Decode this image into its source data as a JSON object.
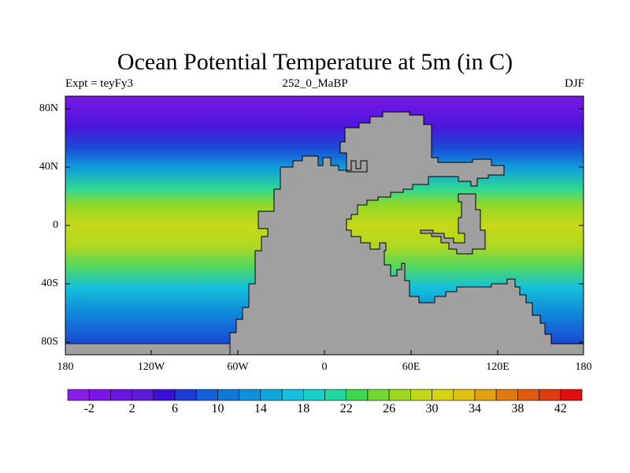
{
  "title": "Ocean Potential Temperature at 5m (in C)",
  "subtitle_left": "Expt = teyFy3",
  "subtitle_center": "252_0_MaBP",
  "subtitle_right": "DJF",
  "y_ticks": [
    "80N",
    "40N",
    "0",
    "40S",
    "80S"
  ],
  "x_ticks": [
    "180",
    "120W",
    "60W",
    "0",
    "60E",
    "120E",
    "180"
  ],
  "colorbar": {
    "colors": [
      "#8a1ee6",
      "#7b16e6",
      "#6a16e0",
      "#5c1ad9",
      "#3a10d8",
      "#1e3ad6",
      "#1460d6",
      "#1078d8",
      "#0e90da",
      "#10a8dc",
      "#14c0dc",
      "#18d0c8",
      "#20d8a0",
      "#40d850",
      "#70d830",
      "#a0d820",
      "#c0d818",
      "#d4d410",
      "#e0c010",
      "#e0a010",
      "#e07a10",
      "#e05a10",
      "#e03a10",
      "#e01010"
    ],
    "labels": [
      "-2",
      "2",
      "6",
      "10",
      "14",
      "18",
      "22",
      "26",
      "30",
      "34",
      "38",
      "42"
    ]
  },
  "colors": {
    "land": "#a0a0a0"
  }
}
